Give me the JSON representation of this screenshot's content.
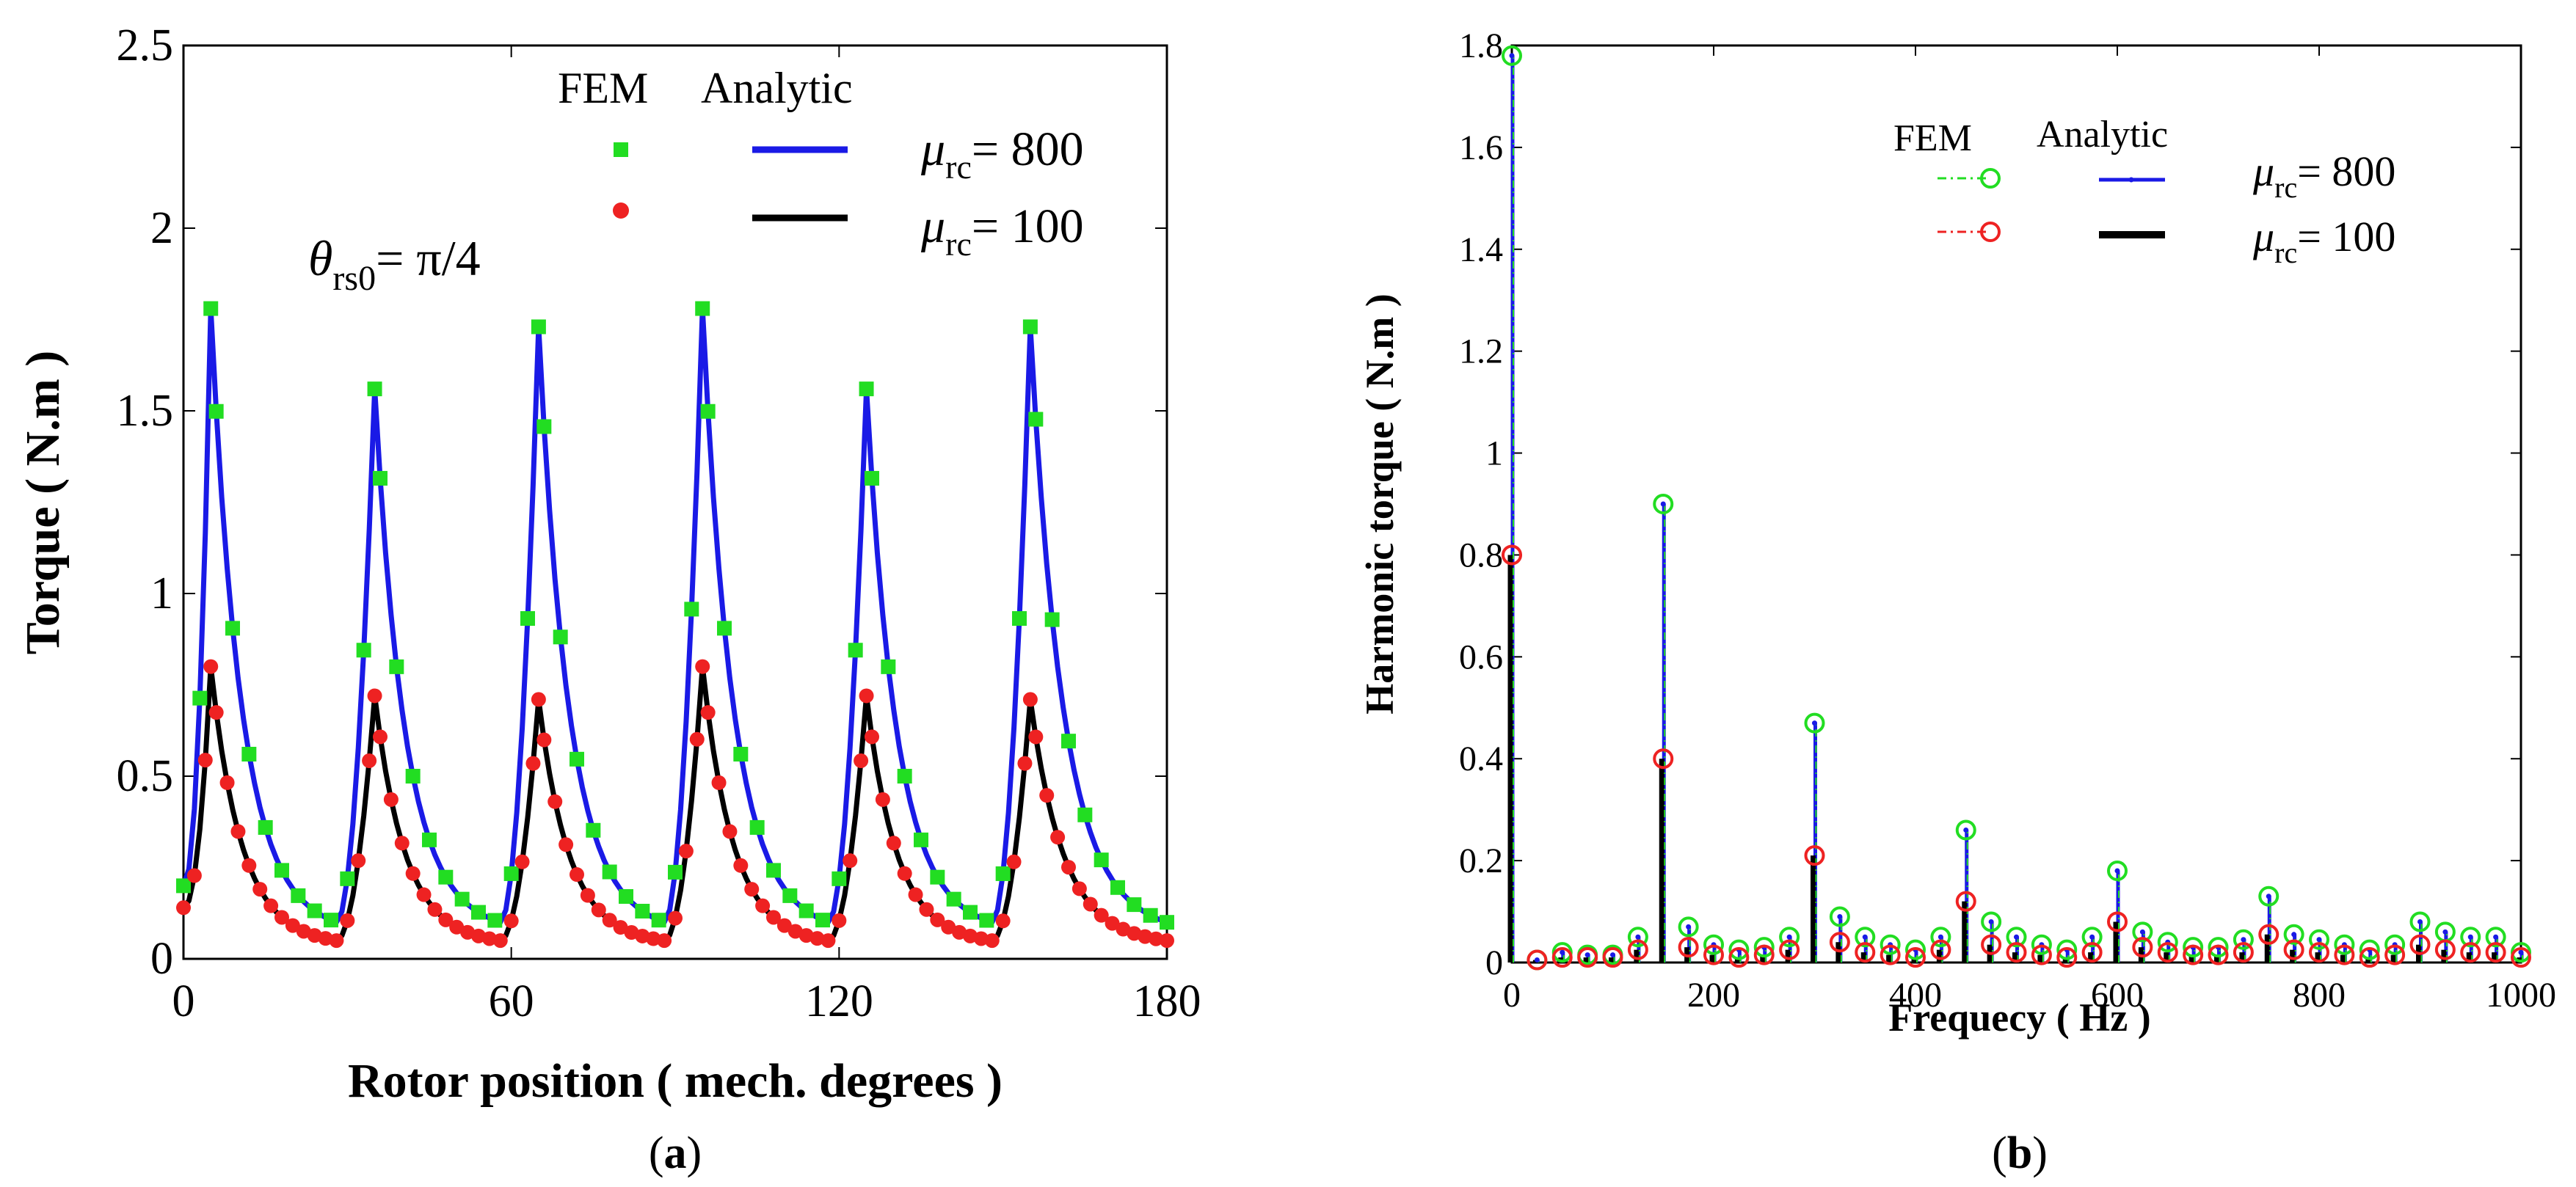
{
  "panels": {
    "a": {
      "label_open": "(",
      "label_letter": "a",
      "label_close": ")"
    },
    "b": {
      "label_open": "(",
      "label_letter": "b",
      "label_close": ")"
    }
  },
  "colors": {
    "fem_800": "#22dd22",
    "fem_100": "#ee2222",
    "analytic_800": "#1a1ae6",
    "analytic_100": "#000000"
  },
  "chart_data": [
    {
      "type": "line",
      "xlabel": "Rotor position ( mech. degrees )",
      "ylabel": "Torque ( N.m )",
      "xlim": [
        0,
        180
      ],
      "ylim": [
        0,
        2.5
      ],
      "xticks": [
        "0",
        "60",
        "120",
        "180"
      ],
      "yticks": [
        "0",
        "0.5",
        "1",
        "1.5",
        "2",
        "2.5"
      ],
      "annotation": {
        "symbol": "θ",
        "subscript": "rs0",
        "text": "= π/4"
      },
      "legend": {
        "placement": "top-right",
        "fem_header": "FEM",
        "analytic_header": "Analytic",
        "rows": [
          {
            "symbol": "μ",
            "subscript": "rc",
            "value": "= 800"
          },
          {
            "symbol": "μ",
            "subscript": "rc",
            "value": "= 100"
          }
        ]
      },
      "peaks": [
        {
          "x": 5,
          "high": 1.78,
          "low": 0.8
        },
        {
          "x": 35,
          "high": 1.56,
          "low": 0.72
        },
        {
          "x": 65,
          "high": 1.73,
          "low": 0.71
        },
        {
          "x": 95,
          "high": 1.78,
          "low": 0.8
        },
        {
          "x": 125,
          "high": 1.56,
          "low": 0.72
        },
        {
          "x": 155,
          "high": 1.73,
          "low": 0.71
        }
      ],
      "valleys": {
        "high": 0.1,
        "low": 0.05
      },
      "series": [
        {
          "name": "FEM μrc = 800",
          "marker": "square",
          "color": "#22dd22"
        },
        {
          "name": "FEM μrc = 100",
          "marker": "circle",
          "color": "#ee2222"
        },
        {
          "name": "Analytic μrc = 800",
          "line": "solid",
          "color": "#1a1ae6"
        },
        {
          "name": "Analytic μrc = 100",
          "line": "solid",
          "color": "#000000"
        }
      ]
    },
    {
      "type": "bar",
      "xlabel": "Frequecy  ( Hz )",
      "ylabel": "Harmonic torque ( N.m )",
      "xlim": [
        0,
        1000
      ],
      "ylim": [
        0,
        1.8
      ],
      "xticks": [
        "0",
        "200",
        "400",
        "600",
        "800",
        "1000"
      ],
      "yticks": [
        "0",
        "0.2",
        "0.4",
        "0.6",
        "0.8",
        "1",
        "1.2",
        "1.4",
        "1.6",
        "1.8"
      ],
      "legend": {
        "placement": "top-right",
        "fem_header": "FEM",
        "analytic_header": "Analytic",
        "rows": [
          {
            "symbol": "μ",
            "subscript": "rc",
            "value": "= 800"
          },
          {
            "symbol": "μ",
            "subscript": "rc",
            "value": "= 100"
          }
        ]
      },
      "x": [
        0,
        25,
        50,
        75,
        100,
        125,
        150,
        175,
        200,
        225,
        250,
        275,
        300,
        325,
        350,
        375,
        400,
        425,
        450,
        475,
        500,
        525,
        550,
        575,
        600,
        625,
        650,
        675,
        700,
        725,
        750,
        775,
        800,
        825,
        850,
        875,
        900,
        925,
        950,
        975,
        1000
      ],
      "series": [
        {
          "name": "μrc = 800",
          "values": [
            1.78,
            0.005,
            0.02,
            0.015,
            0.015,
            0.05,
            0.9,
            0.07,
            0.035,
            0.025,
            0.03,
            0.05,
            0.47,
            0.09,
            0.05,
            0.035,
            0.025,
            0.05,
            0.26,
            0.08,
            0.05,
            0.035,
            0.025,
            0.05,
            0.18,
            0.06,
            0.04,
            0.03,
            0.03,
            0.045,
            0.13,
            0.055,
            0.045,
            0.035,
            0.025,
            0.035,
            0.08,
            0.06,
            0.05,
            0.05,
            0.02
          ]
        },
        {
          "name": "μrc = 100",
          "values": [
            0.8,
            0.005,
            0.01,
            0.01,
            0.01,
            0.025,
            0.4,
            0.03,
            0.015,
            0.01,
            0.015,
            0.025,
            0.21,
            0.04,
            0.02,
            0.015,
            0.01,
            0.025,
            0.12,
            0.035,
            0.02,
            0.015,
            0.01,
            0.02,
            0.08,
            0.03,
            0.02,
            0.015,
            0.015,
            0.02,
            0.055,
            0.025,
            0.02,
            0.015,
            0.01,
            0.015,
            0.035,
            0.025,
            0.02,
            0.02,
            0.01
          ]
        }
      ]
    }
  ]
}
